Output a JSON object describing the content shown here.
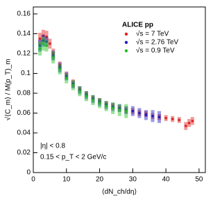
{
  "chart_data": {
    "type": "scatter",
    "title": "ALICE pp",
    "xlabel": "⟨dN_ch/dη⟩",
    "ylabel": "√⟨C_m⟩ / M(p_T)_m",
    "annotations": [
      "|η| < 0.8",
      "0.15 < p_T < 2 GeV/c"
    ],
    "xlim": [
      0,
      51.9
    ],
    "ylim": [
      0,
      0.167
    ],
    "xticks": [
      0,
      10,
      20,
      30,
      40,
      50
    ],
    "yticks": [
      0,
      0.02,
      0.04,
      0.06,
      0.08,
      0.1,
      0.12,
      0.14,
      0.16
    ],
    "legend": "upper right",
    "series": [
      {
        "name": "√s = 7 TeV",
        "color": "#e02020",
        "x": [
          2,
          3,
          4,
          5,
          6,
          8,
          10,
          12,
          14,
          16,
          18,
          20,
          22,
          24,
          26,
          28,
          30,
          32,
          34,
          36,
          38,
          40,
          42,
          44,
          46,
          47,
          48
        ],
        "values": [
          0.135,
          0.138,
          0.137,
          0.13,
          0.12,
          0.108,
          0.098,
          0.09,
          0.084,
          0.079,
          0.075,
          0.072,
          0.069,
          0.067,
          0.065,
          0.063,
          0.062,
          0.06,
          0.059,
          0.057,
          0.056,
          0.055,
          0.054,
          0.053,
          0.047,
          0.05,
          0.052
        ],
        "errors": [
          0.006,
          0.006,
          0.006,
          0.005,
          0.005,
          0.004,
          0.004,
          0.004,
          0.003,
          0.003,
          0.003,
          0.003,
          0.003,
          0.003,
          0.003,
          0.003,
          0.003,
          0.003,
          0.003,
          0.003,
          0.003,
          0.003,
          0.003,
          0.003,
          0.004,
          0.004,
          0.004
        ]
      },
      {
        "name": "√s = 2.76 TeV",
        "color": "#2020c0",
        "x": [
          2,
          3,
          4,
          6,
          8,
          10,
          12,
          14,
          16,
          18,
          20,
          22,
          24,
          26,
          28,
          30,
          32,
          34,
          36,
          38
        ],
        "values": [
          0.128,
          0.133,
          0.132,
          0.118,
          0.106,
          0.097,
          0.089,
          0.083,
          0.078,
          0.074,
          0.071,
          0.068,
          0.066,
          0.065,
          0.063,
          0.062,
          0.06,
          0.058,
          0.057,
          0.056
        ],
        "errors": [
          0.006,
          0.006,
          0.005,
          0.005,
          0.005,
          0.004,
          0.004,
          0.004,
          0.004,
          0.004,
          0.004,
          0.004,
          0.004,
          0.004,
          0.004,
          0.005,
          0.005,
          0.005,
          0.006,
          0.006
        ]
      },
      {
        "name": "√s = 0.9 TeV",
        "color": "#20c020",
        "x": [
          2,
          3,
          4,
          6,
          8,
          10,
          12,
          14,
          16,
          18,
          20,
          22,
          24,
          26,
          28
        ],
        "values": [
          0.125,
          0.13,
          0.128,
          0.116,
          0.104,
          0.095,
          0.088,
          0.082,
          0.077,
          0.073,
          0.07,
          0.067,
          0.065,
          0.063,
          0.062
        ],
        "errors": [
          0.007,
          0.007,
          0.006,
          0.006,
          0.005,
          0.005,
          0.005,
          0.005,
          0.005,
          0.005,
          0.005,
          0.005,
          0.006,
          0.006,
          0.007
        ]
      }
    ]
  }
}
